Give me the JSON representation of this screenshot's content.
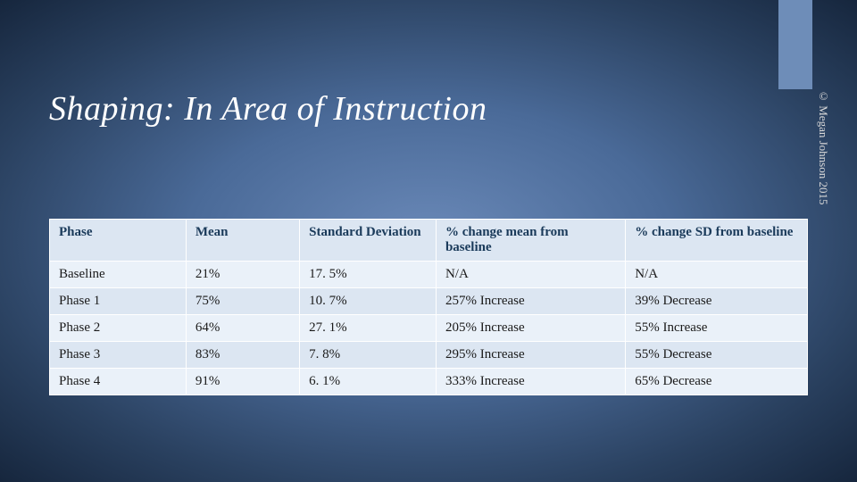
{
  "title": "Shaping: In Area of Instruction",
  "copyright": "© Megan Johnson 2015",
  "accent_bar_color": "#6e8db8",
  "background_gradient": [
    "#6a89b8",
    "#4a6a98",
    "#2a4160",
    "#16263d"
  ],
  "table": {
    "columns": [
      "Phase",
      "Mean",
      "Standard Deviation",
      "% change mean from baseline",
      "% change  SD from baseline"
    ],
    "column_widths_pct": [
      18,
      15,
      18,
      25,
      24
    ],
    "header_bg": "#dce6f2",
    "row_bg_odd": "#eaf1f9",
    "row_bg_even": "#dce6f2",
    "border_color": "#ffffff",
    "text_color": "#1a1a1a",
    "header_text_color": "#1a3a5a",
    "font_size": 15,
    "rows": [
      [
        "Baseline",
        "21%",
        "17. 5%",
        "N/A",
        "N/A"
      ],
      [
        "Phase 1",
        "75%",
        "10. 7%",
        "257% Increase",
        "39% Decrease"
      ],
      [
        "Phase 2",
        "64%",
        "27. 1%",
        "205% Increase",
        "55% Increase"
      ],
      [
        "Phase 3",
        "83%",
        "7. 8%",
        "295% Increase",
        "55% Decrease"
      ],
      [
        "Phase 4",
        "91%",
        "6. 1%",
        "333% Increase",
        "65% Decrease"
      ]
    ]
  }
}
